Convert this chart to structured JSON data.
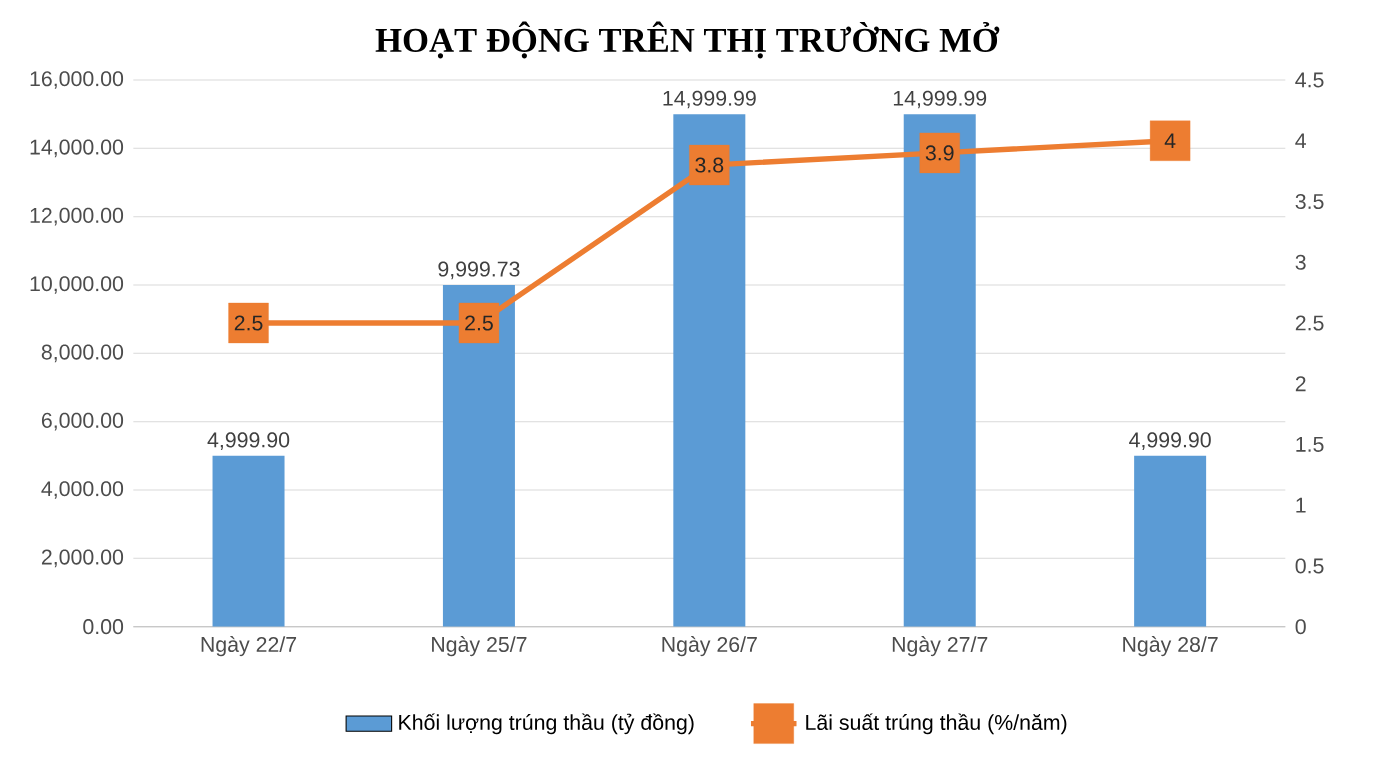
{
  "chart_data": {
    "type": "bar",
    "title": "HOẠT ĐỘNG TRÊN THỊ TRƯỜNG MỞ",
    "categories": [
      "Ngày 22/7",
      "Ngày 25/7",
      "Ngày 26/7",
      "Ngày 27/7",
      "Ngày 28/7"
    ],
    "series": [
      {
        "name": "Khối lượng trúng thầu (tỷ đồng)",
        "color": "#5b9bd5",
        "values": [
          4999.9,
          9999.73,
          14999.99,
          14999.99,
          4999.9
        ],
        "value_labels": [
          "4,999.90",
          "9,999.73",
          "14,999.99",
          "14,999.99",
          "4,999.90"
        ]
      },
      {
        "name": "Lãi suất trúng thầu (%/năm)",
        "type": "line",
        "axis": "y2",
        "marker": "square",
        "color": "#ed7d31",
        "values": [
          2.5,
          2.5,
          3.8,
          3.9,
          4
        ],
        "value_labels": [
          "2.5",
          "2.5",
          "3.8",
          "3.9",
          "4"
        ]
      }
    ],
    "ylim": [
      0,
      16000
    ],
    "yticks": [
      {
        "value": 0,
        "label": "0.00"
      },
      {
        "value": 2000,
        "label": "2,000.00"
      },
      {
        "value": 4000,
        "label": "4,000.00"
      },
      {
        "value": 6000,
        "label": "6,000.00"
      },
      {
        "value": 8000,
        "label": "8,000.00"
      },
      {
        "value": 10000,
        "label": "10,000.00"
      },
      {
        "value": 12000,
        "label": "12,000.00"
      },
      {
        "value": 14000,
        "label": "14,000.00"
      },
      {
        "value": 16000,
        "label": "16,000.00"
      }
    ],
    "y2lim": [
      0,
      4.5
    ],
    "y2ticks": [
      0,
      0.5,
      1,
      1.5,
      2,
      2.5,
      3,
      3.5,
      4,
      4.5
    ],
    "grid": "y",
    "legend": "bottom"
  }
}
